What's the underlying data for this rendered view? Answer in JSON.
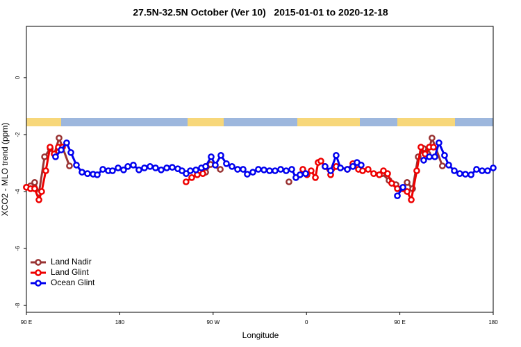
{
  "chart_data": {
    "type": "line",
    "title": "27.5N-32.5N October (Ver 10)   2015-01-01 to 2020-12-18",
    "x_label": "Longitude",
    "y_label": "XCO2 - MLO trend (ppm)",
    "xlim": [
      90,
      540
    ],
    "ylim": [
      -8.24,
      1.8
    ],
    "xticks": [
      {
        "value": 90,
        "label": "90 E"
      },
      180,
      {
        "value": 270,
        "label": "90 W"
      },
      {
        "value": 360,
        "label": "0"
      },
      {
        "value": 450,
        "label": "90 E"
      },
      {
        "value": 540,
        "label": "180"
      }
    ],
    "yticks": [
      -8,
      -6,
      -4,
      -2,
      0
    ],
    "grid": false,
    "legend": "bottomleft",
    "series": [
      {
        "name": "Land Nadir",
        "color": "#993333",
        "x": [
          90,
          94,
          98,
          102.1,
          107.5,
          113,
          117,
          121.5,
          131.5,
          null,
          262.8,
          267.5,
          276.9,
          null,
          343.1,
          null,
          432.9,
          439.6,
          446.3,
          451.6,
          457,
          462.3,
          467.7,
          473,
          477,
          481,
          491
        ],
        "values": [
          -3.85,
          -3.8,
          -3.68,
          -4.05,
          -2.78,
          -2.49,
          -2.68,
          -2.12,
          -3.1,
          null,
          -3.32,
          -3.05,
          -3.22,
          null,
          -3.66,
          null,
          -3.37,
          -3.61,
          -3.76,
          -3.9,
          -3.68,
          -3.9,
          -2.78,
          -2.49,
          -2.68,
          -2.12,
          -3.1
        ]
      },
      {
        "name": "Land Glint",
        "color": "#ee0000",
        "x": [
          90,
          94,
          98,
          102.1,
          104.7,
          108.7,
          112.8,
          116.8,
          120.8,
          124.8,
          null,
          243.9,
          249.4,
          254.7,
          260.1,
          262.8,
          null,
          356.5,
          360.5,
          364.5,
          368.6,
          371.2,
          373.9,
          377.9,
          383.3,
          388.6,
          399.4,
          404.7,
          410.1,
          414.1,
          419.4,
          424.8,
          430.2,
          434.2,
          438.2,
          442.2,
          447.6,
          453,
          457,
          461,
          466.3,
          470.3,
          474.3,
          478.4,
          482.4
        ],
        "values": [
          -3.85,
          -3.9,
          -3.9,
          -4.29,
          -4.0,
          -3.27,
          -2.44,
          -2.68,
          -2.44,
          -2.44,
          null,
          -3.66,
          -3.51,
          -3.41,
          -3.37,
          -3.12,
          null,
          -3.22,
          -3.41,
          -3.27,
          -3.51,
          -2.98,
          -2.93,
          -3.12,
          -3.41,
          -3.12,
          -3.22,
          -3.02,
          -3.22,
          -3.27,
          -3.22,
          -3.37,
          -3.41,
          -3.27,
          -3.37,
          -3.71,
          -3.9,
          -3.9,
          -4.0,
          -4.29,
          -3.27,
          -2.44,
          -2.68,
          -2.44,
          -2.44
        ]
      },
      {
        "name": "Ocean Glint",
        "color": "#0000ee",
        "x": [
          118.1,
          123.5,
          128.8,
          132.9,
          138.2,
          143.6,
          148.9,
          154.3,
          158.3,
          163.7,
          169,
          173,
          178.4,
          183.7,
          187.8,
          193.1,
          198.5,
          203.8,
          209.2,
          214.5,
          219.9,
          225.3,
          230.6,
          236,
          240,
          244,
          248,
          253.4,
          258.7,
          262.8,
          268.1,
          272.1,
          277.5,
          282.8,
          288.2,
          293.6,
          298.9,
          302.9,
          308.3,
          313.6,
          319,
          324.4,
          329.7,
          335.1,
          340.4,
          345.8,
          349.8,
          353.8,
          359.2,
          null,
          377.9,
          383.3,
          388.6,
          392.7,
          399.4,
          404.7,
          408.7,
          412.7,
          null,
          447.6,
          453,
          null,
          473,
          478.4,
          483.7,
          487.7,
          493.1,
          497.1,
          502.5,
          507.8,
          513.2,
          518.6,
          523.9,
          529.3,
          534.6,
          540
        ],
        "values": [
          -2.78,
          -2.54,
          -2.29,
          -2.63,
          -3.07,
          -3.32,
          -3.37,
          -3.39,
          -3.41,
          -3.22,
          -3.27,
          -3.27,
          -3.17,
          -3.24,
          -3.12,
          -3.07,
          -3.24,
          -3.17,
          -3.12,
          -3.17,
          -3.24,
          -3.17,
          -3.15,
          -3.2,
          -3.27,
          -3.37,
          -3.27,
          -3.24,
          -3.17,
          -3.12,
          -2.78,
          -3.07,
          -2.73,
          -3.02,
          -3.12,
          -3.22,
          -3.22,
          -3.39,
          -3.32,
          -3.22,
          -3.24,
          -3.27,
          -3.27,
          -3.22,
          -3.27,
          -3.22,
          -3.51,
          -3.41,
          -3.37,
          null,
          -3.12,
          -3.27,
          -2.73,
          -3.17,
          -3.22,
          -3.12,
          -2.98,
          -3.07,
          null,
          -4.15,
          -3.85,
          null,
          -2.9,
          -2.78,
          -2.78,
          -2.29,
          -2.73,
          -3.07,
          -3.27,
          -3.37,
          -3.39,
          -3.41,
          -3.22,
          -3.27,
          -3.27,
          -3.17
        ]
      }
    ]
  }
}
